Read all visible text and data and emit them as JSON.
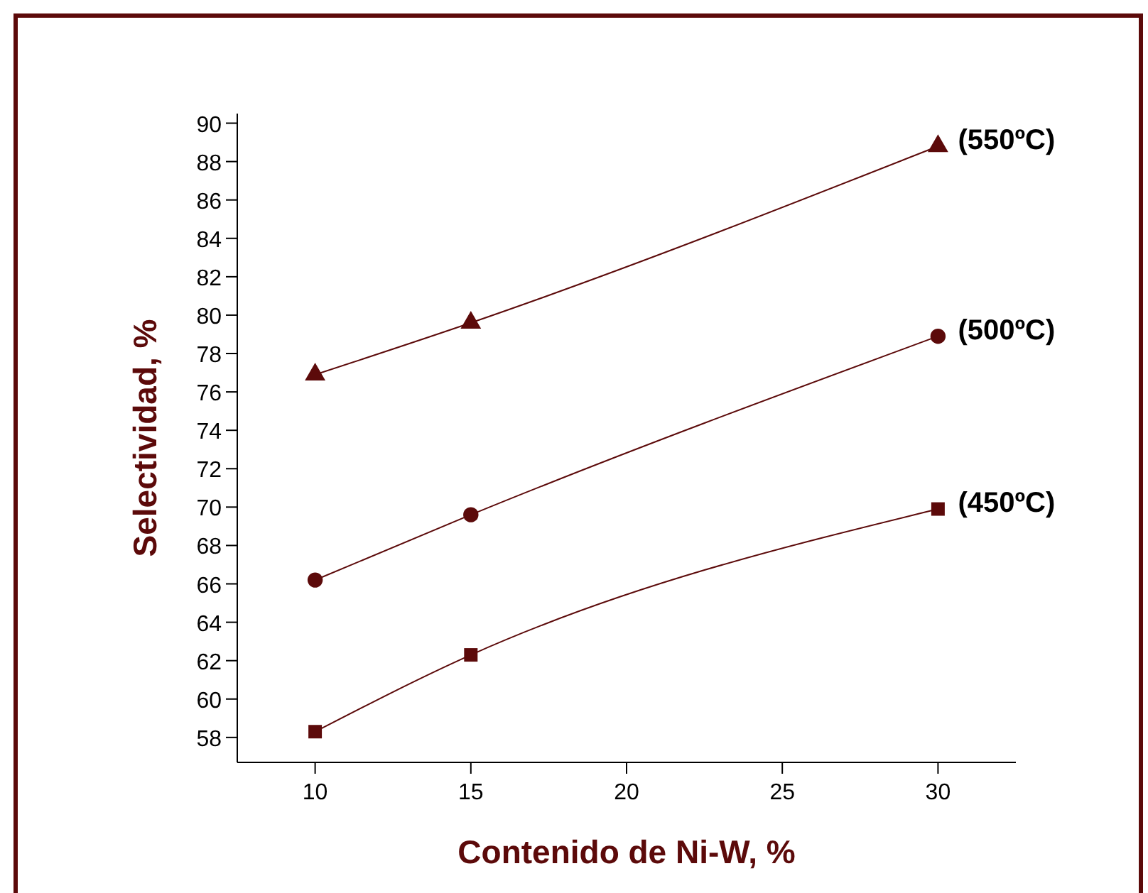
{
  "chart_data": {
    "type": "line",
    "xlabel": "Contenido de Ni-W, %",
    "ylabel": "Selectividad, %",
    "x": [
      10,
      15,
      30
    ],
    "xlim": [
      7.5,
      32.5
    ],
    "xticks": [
      10,
      15,
      20,
      25,
      30
    ],
    "ylim": [
      56.7,
      90.5
    ],
    "yticks": [
      58,
      60,
      62,
      64,
      66,
      68,
      70,
      72,
      74,
      76,
      78,
      80,
      82,
      84,
      86,
      88,
      90
    ],
    "grid": false,
    "line_style": "solid",
    "series": [
      {
        "name": "(550ºC)",
        "color": "#5c0a0a",
        "marker": "triangle",
        "values": [
          76.9,
          79.6,
          88.8
        ]
      },
      {
        "name": "(500ºC)",
        "color": "#5c0a0a",
        "marker": "circle",
        "values": [
          66.2,
          69.6,
          78.9
        ]
      },
      {
        "name": "(450ºC)",
        "color": "#5c0a0a",
        "marker": "square",
        "values": [
          58.3,
          62.3,
          69.9
        ]
      }
    ]
  }
}
